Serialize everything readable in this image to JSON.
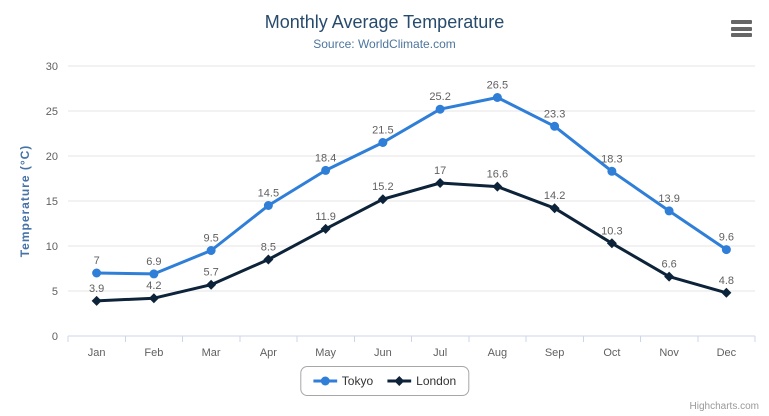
{
  "header": {
    "title": "Monthly Average Temperature",
    "subtitle": "Source: WorldClimate.com"
  },
  "credit_label": "Highcharts.com",
  "menu_icon": "hamburger-icon",
  "chart_data": {
    "type": "line",
    "title": "Monthly Average Temperature",
    "subtitle": "Source: WorldClimate.com",
    "xlabel": "",
    "ylabel": "Temperature (°C)",
    "categories": [
      "Jan",
      "Feb",
      "Mar",
      "Apr",
      "May",
      "Jun",
      "Jul",
      "Aug",
      "Sep",
      "Oct",
      "Nov",
      "Dec"
    ],
    "series": [
      {
        "name": "Tokyo",
        "color": "#2f7ed8",
        "marker": "circle",
        "values": [
          7.0,
          6.9,
          9.5,
          14.5,
          18.4,
          21.5,
          25.2,
          26.5,
          23.3,
          18.3,
          13.9,
          9.6
        ]
      },
      {
        "name": "London",
        "color": "#0d233a",
        "marker": "diamond",
        "values": [
          3.9,
          4.2,
          5.7,
          8.5,
          11.9,
          15.2,
          17.0,
          16.6,
          14.2,
          10.3,
          6.6,
          4.8
        ]
      }
    ],
    "ylim": [
      0,
      30
    ],
    "ytick_step": 5,
    "grid": true,
    "data_labels": true,
    "legend_position": "bottom"
  },
  "colors": {
    "title": "#274b6d",
    "subtitle": "#4d759e",
    "axis_title": "#4572a7",
    "axis_labels": "#606060",
    "data_labels": "#606060",
    "gridline": "#e6e6e6",
    "axis_line": "#ccd6eb",
    "legend_text": "#333333",
    "credit": "#999999"
  }
}
